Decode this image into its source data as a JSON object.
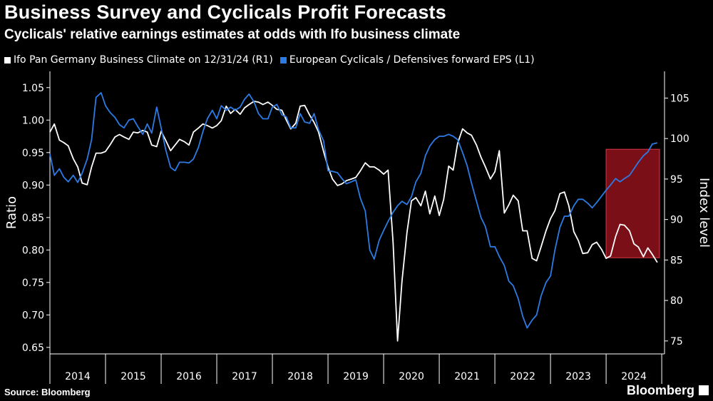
{
  "chart_data": {
    "type": "line",
    "title": "Business Survey and Cyclicals Profit Forecasts",
    "subtitle": "Cyclicals' relative earnings estimates at odds with Ifo business climate",
    "ylabel_left": "Ratio",
    "ylabel_right": "Index level",
    "ylim_left": [
      0.64,
      1.075
    ],
    "ylim_right": [
      73.4,
      108.3
    ],
    "yticks_left": [
      "1.05",
      "1.00",
      "0.95",
      "0.90",
      "0.85",
      "0.80",
      "0.75",
      "0.70",
      "0.65"
    ],
    "yticks_right": [
      "105",
      "100",
      "95",
      "90",
      "85",
      "80",
      "75"
    ],
    "x_range": [
      2014.0,
      2025.05
    ],
    "year_labels": [
      "2014",
      "2015",
      "2016",
      "2017",
      "2018",
      "2019",
      "2020",
      "2021",
      "2022",
      "2023",
      "2024"
    ],
    "highlight": {
      "x_start": 2024.0,
      "x_end": 2024.96,
      "y_start_left": 0.788,
      "y_end_left": 0.955,
      "color": "#7a0f17"
    },
    "series": [
      {
        "name": "Ifo Pan Germany Business Climate  on 12/31/24 (R1)",
        "axis": "right",
        "color": "#ffffff",
        "x": [
          2014.0,
          2014.08,
          2014.17,
          2014.25,
          2014.33,
          2014.42,
          2014.5,
          2014.58,
          2014.67,
          2014.75,
          2014.83,
          2014.92,
          2015.0,
          2015.08,
          2015.17,
          2015.25,
          2015.33,
          2015.42,
          2015.5,
          2015.58,
          2015.67,
          2015.75,
          2015.83,
          2015.92,
          2016.0,
          2016.08,
          2016.17,
          2016.25,
          2016.33,
          2016.42,
          2016.5,
          2016.58,
          2016.67,
          2016.75,
          2016.83,
          2016.92,
          2017.0,
          2017.08,
          2017.17,
          2017.25,
          2017.33,
          2017.42,
          2017.5,
          2017.58,
          2017.67,
          2017.75,
          2017.83,
          2017.92,
          2018.0,
          2018.08,
          2018.17,
          2018.25,
          2018.33,
          2018.42,
          2018.5,
          2018.58,
          2018.67,
          2018.75,
          2018.83,
          2018.92,
          2019.0,
          2019.08,
          2019.17,
          2019.25,
          2019.33,
          2019.42,
          2019.5,
          2019.58,
          2019.67,
          2019.75,
          2019.83,
          2019.92,
          2020.0,
          2020.08,
          2020.17,
          2020.25,
          2020.33,
          2020.42,
          2020.5,
          2020.58,
          2020.67,
          2020.75,
          2020.83,
          2020.92,
          2021.0,
          2021.08,
          2021.17,
          2021.25,
          2021.33,
          2021.42,
          2021.5,
          2021.58,
          2021.67,
          2021.75,
          2021.83,
          2021.92,
          2022.0,
          2022.08,
          2022.17,
          2022.25,
          2022.33,
          2022.42,
          2022.5,
          2022.58,
          2022.67,
          2022.75,
          2022.83,
          2022.92,
          2023.0,
          2023.08,
          2023.17,
          2023.25,
          2023.33,
          2023.42,
          2023.5,
          2023.58,
          2023.67,
          2023.75,
          2023.83,
          2023.92,
          2024.0,
          2024.08,
          2024.17,
          2024.25,
          2024.33,
          2024.42,
          2024.5,
          2024.58,
          2024.67,
          2024.75,
          2024.83,
          2024.92
        ],
        "values": [
          100.8,
          101.8,
          99.8,
          99.5,
          99.1,
          97.5,
          96.5,
          94.5,
          94.3,
          96.5,
          98.2,
          98.2,
          98.4,
          99.2,
          100.2,
          100.5,
          100.2,
          99.9,
          100.8,
          100.7,
          101.0,
          100.8,
          99.2,
          99.0,
          100.9,
          99.8,
          98.5,
          99.2,
          99.9,
          99.6,
          99.2,
          100.8,
          101.3,
          101.8,
          101.6,
          101.3,
          101.6,
          102.2,
          104.0,
          103.1,
          103.6,
          103.0,
          103.8,
          104.2,
          104.6,
          104.5,
          104.2,
          104.5,
          104.1,
          103.6,
          103.5,
          102.3,
          101.2,
          101.9,
          104.0,
          104.1,
          102.9,
          102.0,
          100.8,
          98.4,
          96.5,
          95.0,
          94.2,
          94.4,
          94.8,
          95.0,
          95.2,
          96.0,
          97.0,
          96.5,
          96.5,
          96.1,
          95.6,
          96.1,
          87.2,
          75.0,
          82.4,
          88.4,
          92.3,
          92.7,
          91.7,
          93.5,
          90.7,
          92.9,
          90.5,
          92.5,
          96.6,
          96.1,
          99.4,
          101.2,
          100.7,
          100.4,
          99.2,
          97.7,
          96.5,
          95.0,
          95.9,
          98.5,
          90.8,
          91.8,
          93.0,
          92.3,
          88.6,
          88.6,
          85.2,
          84.9,
          86.6,
          88.6,
          90.1,
          91.1,
          93.2,
          93.4,
          91.7,
          88.5,
          87.4,
          85.8,
          85.9,
          86.9,
          87.2,
          86.3,
          85.2,
          85.5,
          87.9,
          89.4,
          89.3,
          88.6,
          87.0,
          86.6,
          85.4,
          86.5,
          85.7,
          84.7
        ]
      },
      {
        "name": "European Cyclicals / Defensives forward EPS (L1)",
        "axis": "left",
        "color": "#2c7be5",
        "x": [
          2014.0,
          2014.08,
          2014.17,
          2014.25,
          2014.33,
          2014.42,
          2014.5,
          2014.58,
          2014.67,
          2014.75,
          2014.83,
          2014.92,
          2015.0,
          2015.08,
          2015.17,
          2015.25,
          2015.33,
          2015.42,
          2015.5,
          2015.58,
          2015.67,
          2015.75,
          2015.83,
          2015.92,
          2016.0,
          2016.08,
          2016.17,
          2016.25,
          2016.33,
          2016.42,
          2016.5,
          2016.58,
          2016.67,
          2016.75,
          2016.83,
          2016.92,
          2017.0,
          2017.08,
          2017.17,
          2017.25,
          2017.33,
          2017.42,
          2017.5,
          2017.58,
          2017.67,
          2017.75,
          2017.83,
          2017.92,
          2018.0,
          2018.08,
          2018.17,
          2018.25,
          2018.33,
          2018.42,
          2018.5,
          2018.58,
          2018.67,
          2018.75,
          2018.83,
          2018.92,
          2019.0,
          2019.08,
          2019.17,
          2019.25,
          2019.33,
          2019.42,
          2019.5,
          2019.58,
          2019.67,
          2019.75,
          2019.83,
          2019.92,
          2020.0,
          2020.08,
          2020.17,
          2020.25,
          2020.33,
          2020.42,
          2020.5,
          2020.58,
          2020.67,
          2020.75,
          2020.83,
          2020.92,
          2021.0,
          2021.08,
          2021.17,
          2021.25,
          2021.33,
          2021.42,
          2021.5,
          2021.58,
          2021.67,
          2021.75,
          2021.83,
          2021.92,
          2022.0,
          2022.08,
          2022.17,
          2022.25,
          2022.33,
          2022.42,
          2022.5,
          2022.58,
          2022.67,
          2022.75,
          2022.83,
          2022.92,
          2023.0,
          2023.08,
          2023.17,
          2023.25,
          2023.33,
          2023.42,
          2023.5,
          2023.58,
          2023.67,
          2023.75,
          2023.83,
          2023.92,
          2024.0,
          2024.08,
          2024.17,
          2024.25,
          2024.33,
          2024.42,
          2024.5,
          2024.58,
          2024.67,
          2024.75,
          2024.83,
          2024.92
        ],
        "values": [
          0.948,
          0.915,
          0.925,
          0.912,
          0.905,
          0.915,
          0.904,
          0.918,
          0.94,
          0.97,
          1.035,
          1.042,
          1.022,
          1.012,
          1.004,
          0.993,
          0.988,
          1.0,
          1.002,
          0.99,
          0.978,
          0.994,
          0.98,
          1.02,
          0.988,
          0.955,
          0.927,
          0.922,
          0.935,
          0.935,
          0.934,
          0.94,
          0.958,
          0.982,
          1.002,
          1.015,
          1.002,
          1.022,
          1.015,
          1.02,
          1.015,
          1.02,
          1.032,
          1.04,
          1.028,
          1.01,
          1.002,
          1.002,
          1.02,
          1.024,
          1.008,
          1.005,
          0.988,
          0.988,
          1.01,
          0.997,
          0.995,
          1.01,
          0.985,
          0.968,
          0.922,
          0.921,
          0.919,
          0.91,
          0.902,
          0.905,
          0.908,
          0.88,
          0.86,
          0.8,
          0.786,
          0.815,
          0.83,
          0.844,
          0.858,
          0.868,
          0.875,
          0.87,
          0.882,
          0.905,
          0.918,
          0.945,
          0.96,
          0.97,
          0.975,
          0.975,
          0.978,
          0.975,
          0.97,
          0.95,
          0.93,
          0.903,
          0.875,
          0.85,
          0.836,
          0.805,
          0.805,
          0.79,
          0.776,
          0.752,
          0.745,
          0.725,
          0.698,
          0.68,
          0.692,
          0.7,
          0.729,
          0.75,
          0.76,
          0.8,
          0.835,
          0.852,
          0.852,
          0.868,
          0.878,
          0.878,
          0.872,
          0.865,
          0.873,
          0.883,
          0.892,
          0.9,
          0.91,
          0.905,
          0.91,
          0.915,
          0.925,
          0.935,
          0.945,
          0.951,
          0.963,
          0.965
        ]
      }
    ]
  }
}
